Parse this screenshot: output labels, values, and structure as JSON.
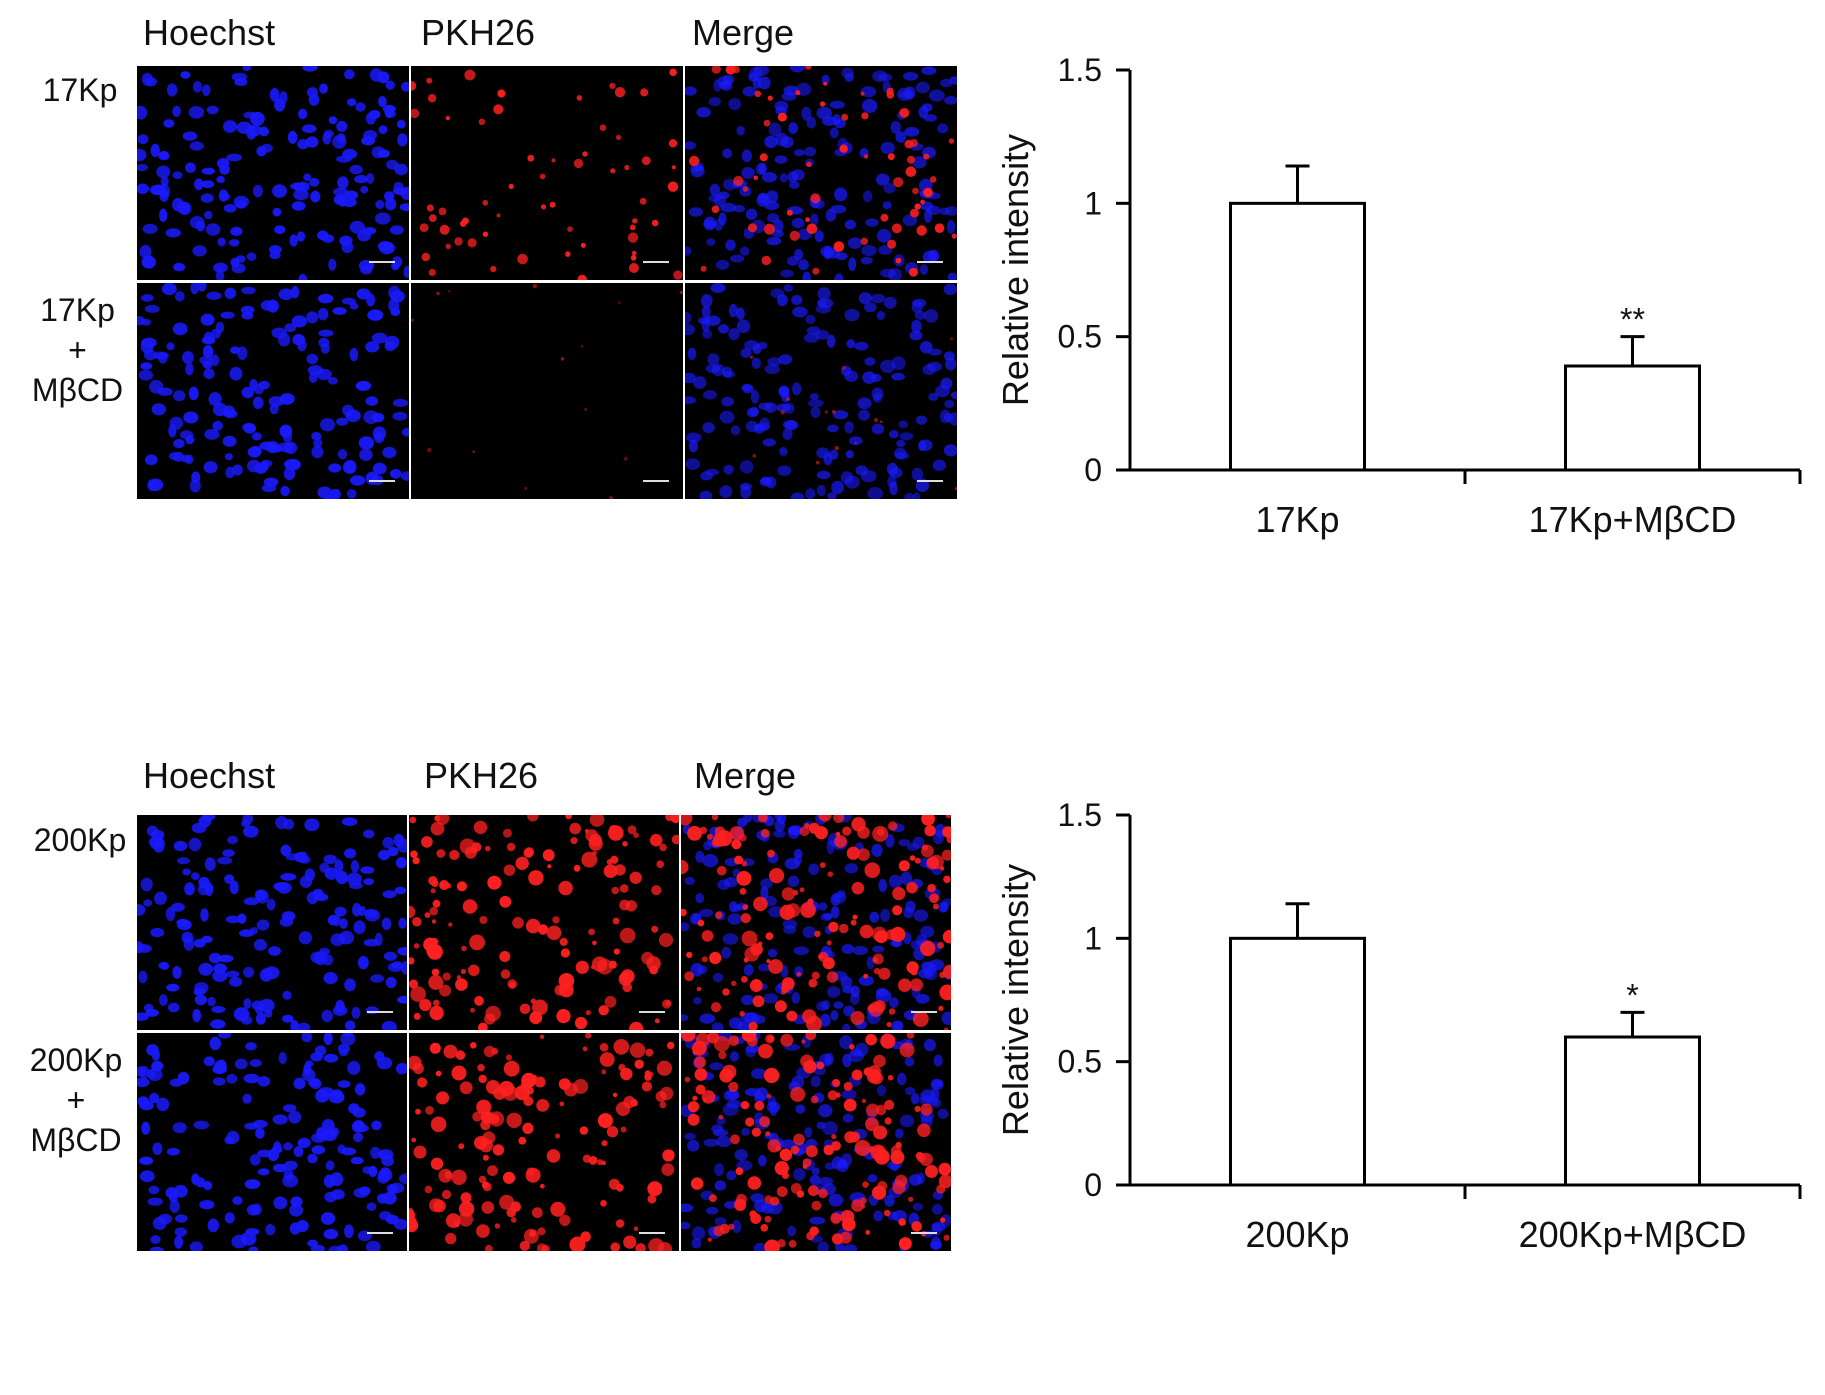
{
  "figure": {
    "panels": [
      {
        "columns": [
          "Hoechst",
          "PKH26",
          "Merge"
        ],
        "rows": [
          {
            "label_lines": [
              "17Kp"
            ],
            "pkh_level": "medium"
          },
          {
            "label_lines": [
              "17Kp",
              "+",
              "MβCD"
            ],
            "pkh_level": "faint"
          }
        ]
      },
      {
        "columns": [
          "Hoechst",
          "PKH26",
          "Merge"
        ],
        "rows": [
          {
            "label_lines": [
              "200Kp"
            ],
            "pkh_level": "strong"
          },
          {
            "label_lines": [
              "200Kp",
              "+",
              "MβCD"
            ],
            "pkh_level": "strong"
          }
        ]
      }
    ],
    "colors": {
      "nuclei": "#1a1aff",
      "pkh26": "#ff2020",
      "bar_fill": "#ffffff",
      "axis": "#000000"
    }
  },
  "chart_data": [
    {
      "type": "bar",
      "categories": [
        "17Kp",
        "17Kp+MβCD"
      ],
      "values": [
        1.0,
        0.39
      ],
      "errors": [
        0.14,
        0.11
      ],
      "significance": [
        "",
        "**"
      ],
      "ylabel": "Relative intensity",
      "yticks": [
        "0",
        "0.5",
        "1",
        "1.5"
      ],
      "ylim": [
        0,
        1.5
      ],
      "grid": false
    },
    {
      "type": "bar",
      "categories": [
        "200Kp",
        "200Kp+MβCD"
      ],
      "values": [
        1.0,
        0.6
      ],
      "errors": [
        0.14,
        0.1
      ],
      "significance": [
        "",
        "*"
      ],
      "ylabel": "Relative intensity",
      "yticks": [
        "0",
        "0.5",
        "1",
        "1.5"
      ],
      "ylim": [
        0,
        1.5
      ],
      "grid": false
    }
  ]
}
